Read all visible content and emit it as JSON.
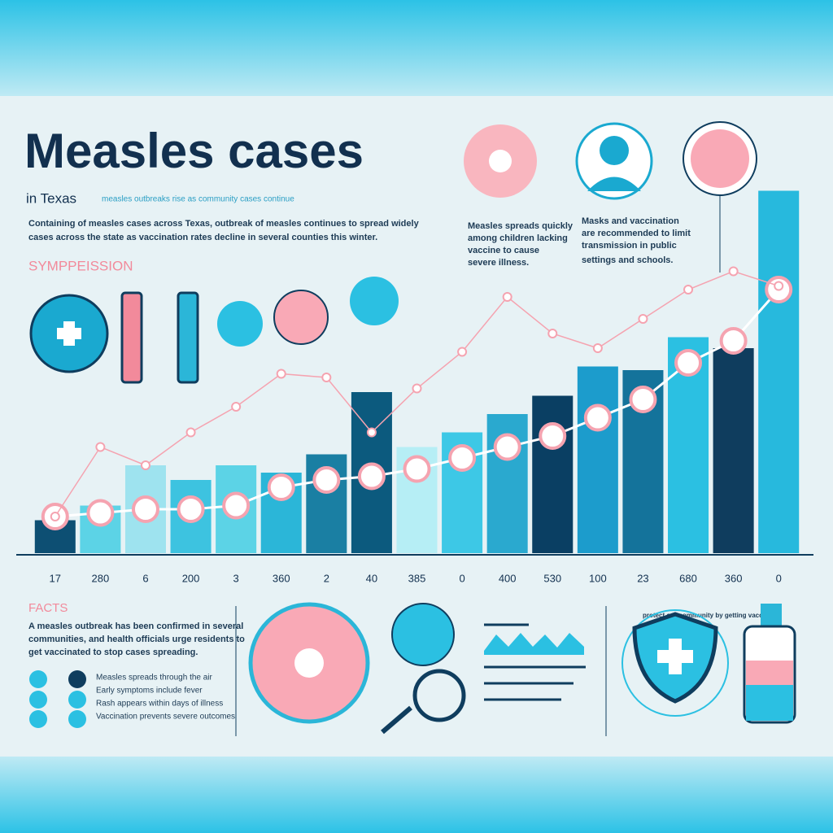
{
  "header": {
    "title": "Measles cases",
    "subtitle": "in Texas",
    "tagline": "measles outbreaks rise as community cases continue",
    "intro": [
      "Containing of measles cases across Texas, outbreak of measles continues to spread widely",
      "cases across the state as vaccination rates decline in several counties this winter."
    ]
  },
  "section_label": "SYMPPEISSION",
  "notes": [
    {
      "lines": [
        "Measles spreads quickly",
        "among children lacking",
        "vaccine to cause",
        "severe illness."
      ]
    },
    {
      "lines": [
        "Masks and vaccination",
        "are recommended to limit",
        "transmission in public",
        "settings and schools."
      ]
    }
  ],
  "chart_data": {
    "type": "bar",
    "categories": [
      "17",
      "280",
      "6",
      "200",
      "3",
      "360",
      "2",
      "40",
      "385",
      "0",
      "400",
      "530",
      "100",
      "23",
      "680",
      "360",
      "0"
    ],
    "values": [
      9,
      13,
      24,
      20,
      24,
      22,
      27,
      44,
      29,
      33,
      38,
      43,
      51,
      50,
      59,
      56,
      99
    ],
    "bar_colors": [
      "#0d4f73",
      "#5cd3e6",
      "#9ee3ef",
      "#3dc3e0",
      "#5cd3e6",
      "#2bb6d8",
      "#1a7fa3",
      "#0c5a7e",
      "#b6eef5",
      "#3dc8e6",
      "#2aa9cf",
      "#0a3f63",
      "#1c9ccc",
      "#14739b",
      "#2bc0e2",
      "#0f3d5e",
      "#27b9dd"
    ],
    "ylim": [
      0,
      100
    ],
    "series": [
      {
        "color": "#ffffff",
        "values": [
          10,
          11,
          12,
          12,
          13,
          18,
          20,
          21,
          23,
          26,
          29,
          32,
          37,
          42,
          52,
          58,
          72
        ]
      },
      {
        "color": "#f5a3b0",
        "values": [
          10,
          29,
          24,
          33,
          40,
          49,
          48,
          33,
          45,
          55,
          70,
          60,
          56,
          64,
          72,
          77,
          73
        ]
      }
    ]
  },
  "facts": {
    "title": "FACTS",
    "lines": [
      "A measles outbreak has been confirmed in several",
      "communities, and health officials urge residents to",
      "get vaccinated to stop cases spreading."
    ],
    "list": [
      "Measles spreads through the air",
      "Early symptoms include fever",
      "Rash appears within days of illness",
      "Vaccination prevents severe outcomes"
    ]
  },
  "badge": "protect our community by getting vaccinated"
}
